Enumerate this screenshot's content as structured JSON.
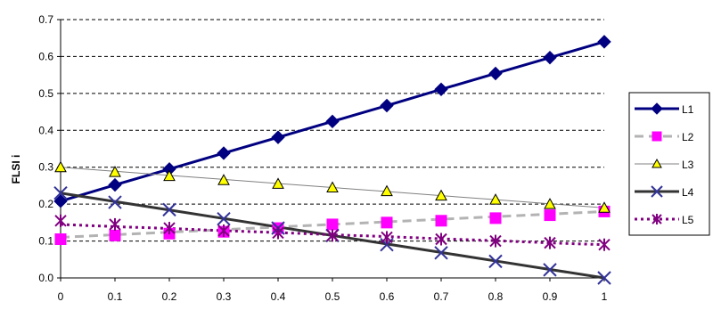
{
  "chart_data": {
    "type": "line",
    "title": "",
    "xlabel": "",
    "ylabel": "FLSI i",
    "xlim": [
      0,
      1
    ],
    "ylim": [
      0,
      0.7
    ],
    "x": [
      0,
      0.1,
      0.2,
      0.3,
      0.4,
      0.5,
      0.6,
      0.7,
      0.8,
      0.9,
      1
    ],
    "x_tick_labels": [
      "0",
      "0.1",
      "0.2",
      "0.3",
      "0.4",
      "0.5",
      "0.6",
      "0.7",
      "0.8",
      "0.9",
      "1"
    ],
    "y_ticks": [
      0,
      0.1,
      0.2,
      0.3,
      0.4,
      0.5,
      0.6,
      0.7
    ],
    "y_tick_labels": [
      "0.0",
      "0.1",
      "0.2",
      "0.3",
      "0.4",
      "0.5",
      "0.6",
      "0.7"
    ],
    "grid": "horizontal dashed",
    "legend_position": "right",
    "series": [
      {
        "name": "L1",
        "color": "#000080",
        "line_style": "solid-thick",
        "marker": "diamond",
        "marker_color": "#000080",
        "values": [
          0.208,
          0.252,
          0.295,
          0.338,
          0.381,
          0.424,
          0.467,
          0.511,
          0.554,
          0.597,
          0.64
        ],
        "trend": [
          0.208,
          0.252,
          0.295,
          0.338,
          0.381,
          0.424,
          0.467,
          0.511,
          0.554,
          0.597,
          0.64
        ]
      },
      {
        "name": "L2",
        "color": "#b3b3b3",
        "line_style": "dashed-thick",
        "marker": "square",
        "marker_color": "#ff00ff",
        "values": [
          0.105,
          0.115,
          0.12,
          0.125,
          0.135,
          0.145,
          0.15,
          0.155,
          0.162,
          0.17,
          0.18
        ],
        "trend": [
          0.11,
          0.117,
          0.124,
          0.131,
          0.138,
          0.145,
          0.152,
          0.159,
          0.166,
          0.173,
          0.18
        ]
      },
      {
        "name": "L3",
        "color": "#808080",
        "line_style": "solid-thin",
        "marker": "triangle",
        "marker_color": "#ffff00",
        "values": [
          0.3,
          0.287,
          0.276,
          0.265,
          0.255,
          0.245,
          0.235,
          0.223,
          0.212,
          0.2,
          0.19
        ],
        "trend": [
          0.3,
          0.289,
          0.278,
          0.267,
          0.256,
          0.245,
          0.234,
          0.223,
          0.212,
          0.201,
          0.19
        ]
      },
      {
        "name": "L4",
        "color": "#333333",
        "line_style": "solid-thick",
        "marker": "x",
        "marker_color": "#333399",
        "values": [
          0.23,
          0.205,
          0.185,
          0.16,
          0.135,
          0.115,
          0.09,
          0.068,
          0.045,
          0.022,
          0.0
        ],
        "trend": [
          0.23,
          0.207,
          0.184,
          0.161,
          0.138,
          0.115,
          0.092,
          0.069,
          0.046,
          0.023,
          0.0
        ]
      },
      {
        "name": "L5",
        "color": "#800080",
        "line_style": "dotted-thick",
        "marker": "star",
        "marker_color": "#800080",
        "values": [
          0.155,
          0.145,
          0.135,
          0.128,
          0.122,
          0.115,
          0.11,
          0.105,
          0.1,
          0.095,
          0.09
        ],
        "trend": [
          0.145,
          0.139,
          0.134,
          0.128,
          0.123,
          0.117,
          0.112,
          0.106,
          0.101,
          0.095,
          0.09
        ]
      }
    ]
  }
}
